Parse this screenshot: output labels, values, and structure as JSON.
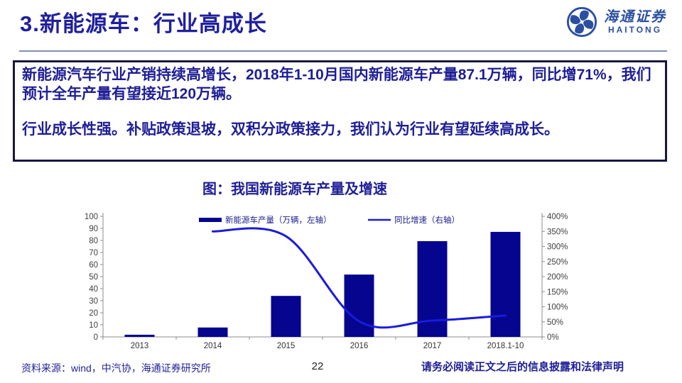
{
  "slide": {
    "title": "3.新能源车：行业高成长"
  },
  "logo": {
    "name_cn": "海通证券",
    "name_en": "HAITONG",
    "color": "#2b4fa0"
  },
  "highlight_box": {
    "para1": "新能源汽车行业产销持续高增长，2018年1-10月国内新能源车产量87.1万辆，同比增71%，我们预计全年产量有望接近120万辆。",
    "para2": "行业成长性强。补贴政策退坡，双积分政策接力，我们认为行业有望延续高成长。"
  },
  "chart_data": {
    "type": "combo",
    "title": "图：我国新能源车产量及增速",
    "categories": [
      "2013",
      "2014",
      "2015",
      "2016",
      "2017",
      "2018.1-10"
    ],
    "series": [
      {
        "name": "新能源车产量（万辆，左轴）",
        "type": "bar",
        "axis": "left",
        "color": "#05058f",
        "values": [
          1.8,
          7.8,
          34,
          51.7,
          79.4,
          87.1
        ]
      },
      {
        "name": "同比增速（右轴）",
        "type": "line",
        "axis": "right",
        "color": "#1a1ade",
        "values": [
          null,
          350,
          334,
          52,
          54,
          71
        ]
      }
    ],
    "left_axis": {
      "min": 0,
      "max": 100,
      "step": 10
    },
    "right_axis": {
      "min": 0,
      "max": 400,
      "step": 50,
      "suffix": "%"
    },
    "legend_position": "top",
    "grid": false
  },
  "footer": {
    "source": "资料来源：wind，中汽协，海通证券研究所",
    "page_number": "22",
    "disclaimer": "请务必阅读正文之后的信息披露和法律声明"
  },
  "colors": {
    "title": "#1f1f9e",
    "body_text": "#1e1e96",
    "box_border": "#17173f",
    "header_rule": "#8090ac",
    "bar": "#05058f",
    "line": "#1a1ade",
    "axis": "#8c8c8c",
    "tick_text": "#404040",
    "legend_text": "#1b1b8e",
    "x_label": "#333333"
  }
}
